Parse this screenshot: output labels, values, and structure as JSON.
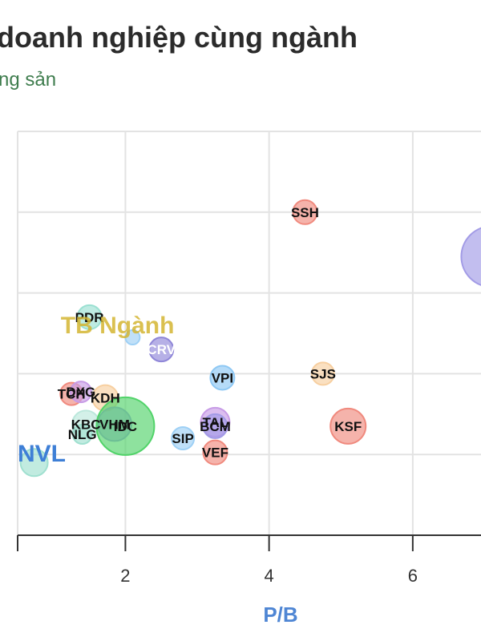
{
  "header": {
    "title": "doanh nghiệp cùng ngành",
    "subtitle": "ng sản"
  },
  "colors": {
    "grid": "#e3e3e3",
    "axis": "#333333",
    "xlabel": "#4f86d4",
    "industry_avg": "#d4b531",
    "focus": "#3e7fd6"
  },
  "chart_data": {
    "type": "scatter",
    "title": "doanh nghiệp cùng ngành",
    "subtitle": "ng sản",
    "xlabel": "P/B",
    "ylabel": "",
    "xlim": [
      0.5,
      6.95
    ],
    "ylim": [
      0,
      10
    ],
    "x_ticks": [
      2,
      4,
      6
    ],
    "x_tick_labels": [
      "2",
      "4",
      "6"
    ],
    "y_grid": [
      2,
      4,
      6,
      8,
      10
    ],
    "grid": true,
    "points": [
      {
        "label": "SSH",
        "x": 4.5,
        "y": 8.0,
        "size": 15,
        "color": "#f08a7e"
      },
      {
        "label": "",
        "x": 7.1,
        "y": 6.9,
        "size": 38,
        "color": "#a29be6"
      },
      {
        "label": "PDR",
        "x": 1.5,
        "y": 5.4,
        "size": 15,
        "color": "#9be0d2"
      },
      {
        "label": "",
        "x": 2.1,
        "y": 4.9,
        "size": 9,
        "color": "#9ed0f5"
      },
      {
        "label": "CRV",
        "x": 2.5,
        "y": 4.6,
        "size": 15,
        "color": "#8f86d8"
      },
      {
        "label": "VPI",
        "x": 3.35,
        "y": 3.9,
        "size": 15,
        "color": "#8ec8f4"
      },
      {
        "label": "SJS",
        "x": 4.75,
        "y": 4.0,
        "size": 14,
        "color": "#f7cfa0"
      },
      {
        "label": "TCH",
        "x": 1.25,
        "y": 3.5,
        "size": 14,
        "color": "#f08a7e"
      },
      {
        "label": "DXG",
        "x": 1.38,
        "y": 3.55,
        "size": 13,
        "color": "#c79be6"
      },
      {
        "label": "KDH",
        "x": 1.72,
        "y": 3.4,
        "size": 16,
        "color": "#f7cfa0"
      },
      {
        "label": "KBC",
        "x": 1.45,
        "y": 2.75,
        "size": 17,
        "color": "#bce8dc"
      },
      {
        "label": "NLG",
        "x": 1.4,
        "y": 2.5,
        "size": 12,
        "color": "#a0e0d0"
      },
      {
        "label": "VHM",
        "x": 1.85,
        "y": 2.75,
        "size": 21,
        "color": "#a29be6"
      },
      {
        "label": "IDC",
        "x": 2.0,
        "y": 2.7,
        "size": 36,
        "color": "#52d36a"
      },
      {
        "label": "SIP",
        "x": 2.8,
        "y": 2.4,
        "size": 14,
        "color": "#9ed0f5"
      },
      {
        "label": "TAL",
        "x": 3.25,
        "y": 2.8,
        "size": 18,
        "color": "#c79be6"
      },
      {
        "label": "BCM",
        "x": 3.25,
        "y": 2.7,
        "size": 15,
        "color": "#a29be6"
      },
      {
        "label": "VEF",
        "x": 3.25,
        "y": 2.05,
        "size": 15,
        "color": "#f08a7e"
      },
      {
        "label": "KSF",
        "x": 5.1,
        "y": 2.7,
        "size": 22,
        "color": "#f08a7e"
      },
      {
        "label": "",
        "x": 0.73,
        "y": 1.8,
        "size": 17,
        "color": "#a0e0d0"
      }
    ],
    "annotations": {
      "industry_avg": {
        "text": "TB Ngành",
        "x": 1.1,
        "y": 5.0
      },
      "focus": {
        "text": "NVL",
        "x": 0.5,
        "y": 1.9
      }
    }
  }
}
